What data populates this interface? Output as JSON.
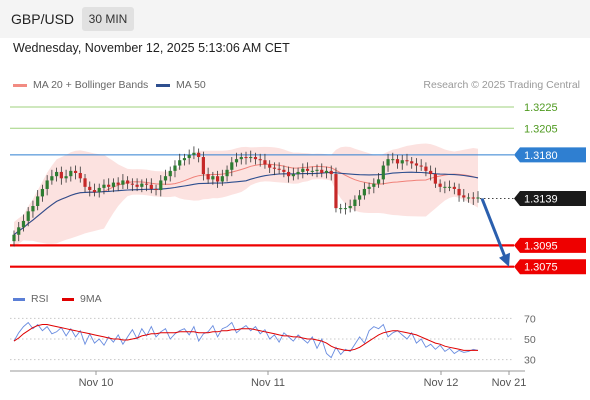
{
  "header": {
    "symbol": "GBP/USD",
    "timeframe": "30 MIN"
  },
  "timestamp": "Wednesday, November 12, 2025 5:13:06 AM CET",
  "legend": [
    {
      "label": "MA 20 + Bollinger Bands",
      "color": "#f28b82"
    },
    {
      "label": "MA 50",
      "color": "#2e4f8f"
    }
  ],
  "credit": "Research © 2025 Trading Central",
  "rsi_legend": [
    {
      "label": "RSI",
      "color": "#5b7fd6"
    },
    {
      "label": "9MA",
      "color": "#e00000"
    }
  ],
  "chart_data": {
    "type": "candlestick",
    "price_axis": {
      "range": [
        1.3055,
        1.324
      ]
    },
    "levels": [
      {
        "label": "1.3225",
        "value": 1.3225,
        "color": "#9fd27d",
        "kind": "resistance"
      },
      {
        "label": "1.3205",
        "value": 1.3205,
        "color": "#9fd27d",
        "kind": "resistance"
      },
      {
        "label": "1.3180",
        "value": 1.318,
        "color": "#2f7fd1",
        "kind": "pivot"
      },
      {
        "label": "1.3139",
        "value": 1.3139,
        "color": "#1a1a1a",
        "kind": "last price"
      },
      {
        "label": "1.3095",
        "value": 1.3095,
        "color": "#ee0000",
        "kind": "support"
      },
      {
        "label": "1.3075",
        "value": 1.3075,
        "color": "#ee0000",
        "kind": "support"
      }
    ],
    "forecast_arrow": {
      "from": 1.3139,
      "to": 1.3075
    },
    "closes": [
      1.3105,
      1.3112,
      1.3118,
      1.3127,
      1.3132,
      1.3141,
      1.3148,
      1.3156,
      1.316,
      1.3164,
      1.3158,
      1.316,
      1.3165,
      1.3163,
      1.3158,
      1.315,
      1.3147,
      1.3145,
      1.3149,
      1.3152,
      1.315,
      1.3154,
      1.3152,
      1.3156,
      1.3153,
      1.3152,
      1.315,
      1.3153,
      1.3152,
      1.3148,
      1.3147,
      1.3156,
      1.316,
      1.3165,
      1.317,
      1.3175,
      1.3177,
      1.318,
      1.3182,
      1.3178,
      1.3162,
      1.3157,
      1.316,
      1.3155,
      1.316,
      1.3166,
      1.3173,
      1.3176,
      1.3178,
      1.3177,
      1.3178,
      1.3176,
      1.3175,
      1.3171,
      1.3168,
      1.3167,
      1.3166,
      1.3164,
      1.316,
      1.3162,
      1.3164,
      1.3167,
      1.3165,
      1.3165,
      1.3166,
      1.3163,
      1.3165,
      1.3162,
      1.313,
      1.313,
      1.313,
      1.3132,
      1.3138,
      1.3142,
      1.3148,
      1.315,
      1.3153,
      1.3157,
      1.317,
      1.3176,
      1.3176,
      1.3172,
      1.3175,
      1.3174,
      1.3172,
      1.317,
      1.3169,
      1.3165,
      1.3162,
      1.3153,
      1.315,
      1.315,
      1.315,
      1.3148,
      1.3142,
      1.314,
      1.314,
      1.3139,
      1.314
    ],
    "x_axis": {
      "ticks": [
        "Nov 10",
        "Nov 11",
        "Nov 12",
        "Nov 21"
      ]
    },
    "rsi": {
      "levels": [
        70,
        50,
        30
      ],
      "range": [
        20,
        80
      ],
      "rsi_values": [
        48,
        56,
        62,
        66,
        60,
        64,
        58,
        62,
        55,
        57,
        61,
        53,
        60,
        52,
        58,
        45,
        55,
        46,
        50,
        44,
        52,
        47,
        54,
        45,
        52,
        59,
        50,
        60,
        53,
        62,
        52,
        57,
        60,
        50,
        55,
        58,
        60,
        54,
        62,
        48,
        55,
        57,
        63,
        52,
        60,
        62,
        66,
        56,
        60,
        63,
        58,
        62,
        55,
        59,
        50,
        54,
        47,
        56,
        52,
        48,
        54,
        50,
        46,
        52,
        41,
        50,
        36,
        32,
        42,
        35,
        40,
        38,
        45,
        52,
        46,
        58,
        62,
        60,
        64,
        52,
        56,
        58,
        54,
        50,
        56,
        46,
        50,
        42,
        45,
        40,
        44,
        38,
        41,
        36,
        39,
        37,
        38,
        40,
        39
      ],
      "ma_values": [
        48,
        51,
        55,
        58,
        61,
        63,
        64,
        64,
        63,
        62,
        61,
        60,
        59,
        58,
        57,
        56,
        55,
        54,
        53,
        52,
        51,
        50,
        50,
        49,
        49,
        50,
        51,
        53,
        54,
        55,
        55,
        56,
        56,
        56,
        56,
        57,
        57,
        57,
        57,
        56,
        56,
        56,
        57,
        57,
        58,
        58,
        59,
        59,
        60,
        60,
        60,
        59,
        58,
        57,
        56,
        55,
        54,
        53,
        53,
        52,
        52,
        51,
        50,
        50,
        49,
        48,
        46,
        43,
        41,
        40,
        39,
        39,
        40,
        42,
        45,
        48,
        51,
        54,
        56,
        57,
        58,
        58,
        57,
        56,
        55,
        54,
        52,
        50,
        48,
        46,
        45,
        43,
        42,
        41,
        40,
        39,
        39,
        39,
        39
      ]
    }
  }
}
